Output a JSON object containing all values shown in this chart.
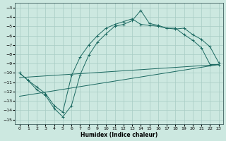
{
  "xlabel": "Humidex (Indice chaleur)",
  "bg_color": "#cce8e0",
  "grid_color": "#a8ccc4",
  "line_color": "#1a6860",
  "xlim": [
    -0.5,
    23.5
  ],
  "ylim": [
    -15.5,
    -2.5
  ],
  "yticks": [
    -3,
    -4,
    -5,
    -6,
    -7,
    -8,
    -9,
    -10,
    -11,
    -12,
    -13,
    -14,
    -15
  ],
  "xticks": [
    0,
    1,
    2,
    3,
    4,
    5,
    6,
    7,
    8,
    9,
    10,
    11,
    12,
    13,
    14,
    15,
    16,
    17,
    18,
    19,
    20,
    21,
    22,
    23
  ],
  "curve1_x": [
    0,
    1,
    2,
    3,
    4,
    5,
    6,
    7,
    8,
    9,
    10,
    11,
    12,
    13,
    14,
    15,
    16,
    17,
    18,
    19,
    20,
    21,
    22,
    23
  ],
  "curve1_y": [
    -10.0,
    -10.8,
    -11.8,
    -12.4,
    -13.8,
    -14.7,
    -13.5,
    -10.2,
    -8.1,
    -6.7,
    -5.8,
    -5.0,
    -4.8,
    -4.4,
    -3.3,
    -4.7,
    -4.9,
    -5.2,
    -5.3,
    -5.2,
    -5.9,
    -6.4,
    -7.2,
    -8.9
  ],
  "curve2_x": [
    0,
    1,
    2,
    3,
    4,
    5,
    6,
    7,
    8,
    9,
    10,
    11,
    12,
    13,
    14,
    15,
    16,
    17,
    18,
    19,
    20,
    21,
    22,
    23
  ],
  "curve2_y": [
    -10.0,
    -10.8,
    -11.5,
    -12.2,
    -13.5,
    -14.2,
    -10.3,
    -8.3,
    -7.0,
    -6.0,
    -5.2,
    -4.8,
    -4.5,
    -4.2,
    -4.8,
    -4.9,
    -5.0,
    -5.2,
    -5.2,
    -5.9,
    -6.5,
    -7.3,
    -9.1,
    -9.1
  ],
  "line3_x": [
    0,
    23
  ],
  "line3_y": [
    -10.5,
    -9.1
  ],
  "line4_x": [
    0,
    23
  ],
  "line4_y": [
    -12.5,
    -9.1
  ]
}
